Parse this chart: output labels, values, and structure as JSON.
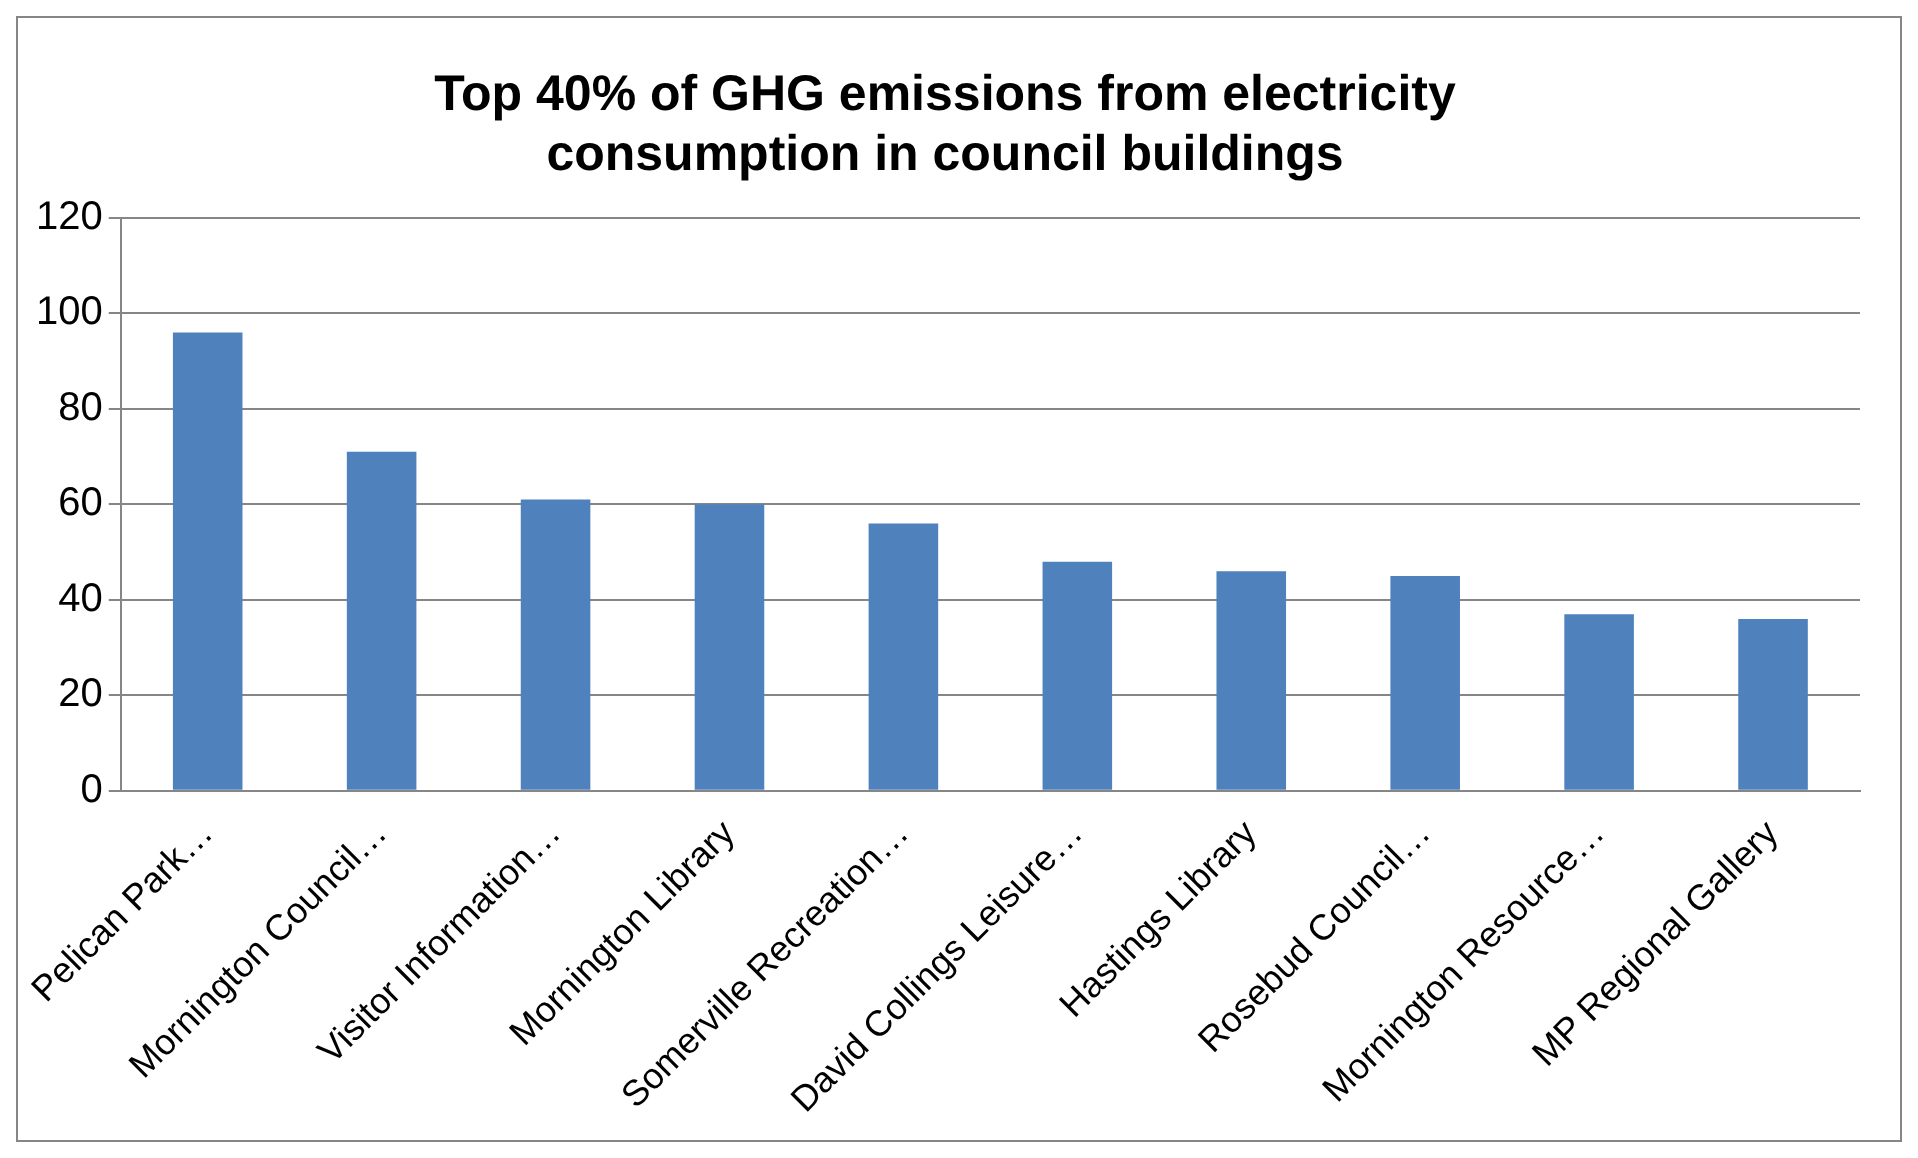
{
  "chart_data": {
    "type": "bar",
    "title": "Top 40% of GHG emissions from electricity consumption in council buildings",
    "categories": [
      "Pelican Park…",
      "Mornington Council…",
      "Visitor Information…",
      "Mornington Library",
      "Somerville Recreation…",
      "David Collings Leisure…",
      "Hastings Library",
      "Rosebud Council…",
      "Mornington Resource…",
      "MP Regional Gallery"
    ],
    "values": [
      96,
      71,
      61,
      60,
      56,
      48,
      46,
      45,
      37,
      36
    ],
    "color": "#4f81bd",
    "ylim": [
      0,
      120
    ],
    "yticks": [
      0,
      20,
      40,
      60,
      80,
      100,
      120
    ],
    "grid": "y",
    "legend": false
  }
}
